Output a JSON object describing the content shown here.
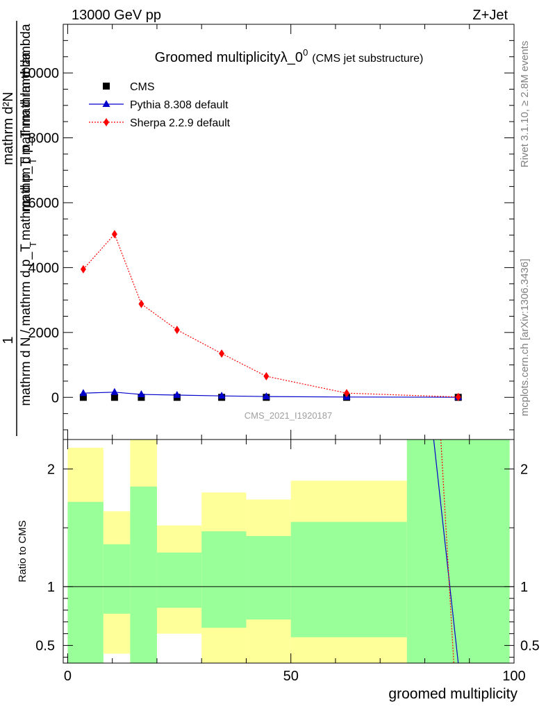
{
  "header": {
    "left": "13000 GeV pp",
    "right": "Z+Jet"
  },
  "side_labels": {
    "rivet": "Rivet 3.1.10, ≥ 2.8M events",
    "mcplots": "mcplots.cern.ch [arXiv:1306.3436]"
  },
  "chart_data": [
    {
      "type": "line",
      "title_main": "Groomed multiplicityλ_0",
      "title_sup": "0",
      "title_sub": "(CMS jet substructure)",
      "ylabel_num": "1",
      "ylabel_den": "mathrm d N / mathrm d p_T mathrm d p_T mathrm d lambda",
      "ylabel_num_overlap": "mathrm d²N",
      "ylabel_den_overlap": "mathrm d p_T mathrm d lambda",
      "watermark": "CMS_2021_I1920187",
      "xlim": [
        -1,
        100
      ],
      "ylim": [
        -1300,
        11500
      ],
      "yticks": [
        0,
        2000,
        4000,
        6000,
        8000,
        10000
      ],
      "ytick_labels": [
        "0",
        "2000",
        "4000",
        "6000",
        "8000",
        "10000"
      ],
      "grid": false,
      "legend_position": "top-left",
      "series": [
        {
          "name": "CMS",
          "marker": "square",
          "color": "#000000",
          "x": [
            3.5,
            10.5,
            16.5,
            24.5,
            34.5,
            44.5,
            62.5,
            87.5
          ],
          "y": [
            0,
            0,
            0,
            0,
            0,
            0,
            0,
            0
          ]
        },
        {
          "name": "Pythia 8.308 default",
          "marker": "triangle",
          "color": "#0000cc",
          "x": [
            3.5,
            10.5,
            16.5,
            24.5,
            34.5,
            44.5,
            62.5,
            87.5
          ],
          "y": [
            130,
            160,
            90,
            70,
            45,
            25,
            10,
            3
          ]
        },
        {
          "name": "Sherpa 2.2.9 default",
          "marker": "diamond",
          "color": "#ff0000",
          "x": [
            3.5,
            10.5,
            16.5,
            24.5,
            34.5,
            44.5,
            62.5,
            87.5
          ],
          "y": [
            3950,
            5030,
            2880,
            2080,
            1350,
            650,
            130,
            10
          ]
        }
      ]
    },
    {
      "type": "line",
      "ylabel": "Ratio to CMS",
      "xlabel": "groomed multiplicity",
      "xlim": [
        -1,
        100
      ],
      "ylim": [
        0.35,
        2.25
      ],
      "xticks": [
        0,
        50,
        100
      ],
      "xtick_labels": [
        "0",
        "50",
        "100"
      ],
      "yticks": [
        0.5,
        1,
        2
      ],
      "ytick_labels": [
        "0.5",
        "1",
        "2"
      ],
      "reference_line": 1,
      "bands": [
        {
          "x0": 0,
          "x1": 8,
          "green": [
            0.35,
            1.72
          ],
          "yellow": [
            0.35,
            2.18
          ]
        },
        {
          "x0": 8,
          "x1": 14,
          "green": [
            0.77,
            1.36
          ],
          "yellow": [
            0.43,
            1.64
          ]
        },
        {
          "x0": 14,
          "x1": 20,
          "green": [
            0.35,
            1.85
          ],
          "yellow": [
            0.35,
            2.25
          ]
        },
        {
          "x0": 20,
          "x1": 30,
          "green": [
            0.82,
            1.29
          ],
          "yellow": [
            0.6,
            1.52
          ]
        },
        {
          "x0": 30,
          "x1": 40,
          "green": [
            0.65,
            1.47
          ],
          "yellow": [
            0.35,
            1.8
          ]
        },
        {
          "x0": 40,
          "x1": 50,
          "green": [
            0.72,
            1.43
          ],
          "yellow": [
            0.35,
            1.74
          ]
        },
        {
          "x0": 50,
          "x1": 76,
          "green": [
            0.57,
            1.55
          ],
          "yellow": [
            0.35,
            1.9
          ]
        },
        {
          "x0": 76,
          "x1": 99,
          "green": [
            0.35,
            2.25
          ],
          "yellow": [
            0.35,
            2.25
          ]
        }
      ],
      "series": [
        {
          "name": "Pythia 8.308 default",
          "color": "#0000cc",
          "x": [
            82,
            87.5
          ],
          "y": [
            2.25,
            0.35
          ]
        },
        {
          "name": "Sherpa 2.2.9 default",
          "color": "#ff0000",
          "x": [
            83.6,
            86.5
          ],
          "y": [
            2.25,
            0.35
          ]
        }
      ]
    }
  ],
  "colors": {
    "band_green": "#99ff99",
    "band_yellow": "#ffff99",
    "watermark": "#a0a0a0",
    "side_text": "#808080"
  }
}
